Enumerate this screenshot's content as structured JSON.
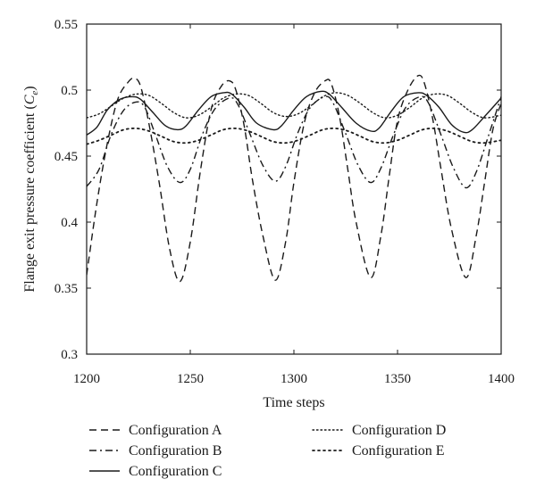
{
  "chart_data": {
    "type": "line",
    "title": "",
    "xlabel": "Time steps",
    "ylabel": {
      "main": "Flange exit pressure coefficient (",
      "symbol": "C",
      "subscript": "e",
      "close": ")"
    },
    "xlim": [
      1200,
      1400
    ],
    "ylim": [
      0.3,
      0.55
    ],
    "xticks": [
      "1200",
      "1250",
      "1300",
      "1350",
      "1400"
    ],
    "yticks": [
      "0.3",
      "0.35",
      "0.4",
      "0.45",
      "0.5",
      "0.55"
    ],
    "grid": false,
    "legend_position": "bottom",
    "series": [
      {
        "name": "Configuration A",
        "style": "dashed",
        "color": "#1a1a1a",
        "x": [
          1200,
          1205,
          1210,
          1215,
          1220,
          1223,
          1226,
          1230,
          1235,
          1240,
          1245,
          1250,
          1255,
          1260,
          1265,
          1269,
          1272,
          1276,
          1280,
          1285,
          1291,
          1296,
          1300,
          1305,
          1310,
          1315,
          1318,
          1322,
          1326,
          1330,
          1337,
          1342,
          1346,
          1350,
          1355,
          1360,
          1363,
          1367,
          1371,
          1376,
          1383,
          1388,
          1392,
          1396,
          1400
        ],
        "y": [
          0.36,
          0.415,
          0.46,
          0.493,
          0.506,
          0.509,
          0.503,
          0.475,
          0.43,
          0.38,
          0.355,
          0.385,
          0.44,
          0.485,
          0.503,
          0.507,
          0.5,
          0.473,
          0.432,
          0.39,
          0.356,
          0.385,
          0.43,
          0.475,
          0.498,
          0.507,
          0.505,
          0.48,
          0.44,
          0.4,
          0.358,
          0.39,
          0.435,
          0.477,
          0.5,
          0.511,
          0.505,
          0.478,
          0.44,
          0.395,
          0.358,
          0.39,
          0.43,
          0.47,
          0.49
        ]
      },
      {
        "name": "Configuration B",
        "style": "dashdot",
        "color": "#1a1a1a",
        "x": [
          1200,
          1206,
          1212,
          1218,
          1224,
          1228,
          1233,
          1239,
          1245,
          1250,
          1256,
          1262,
          1269,
          1273,
          1279,
          1285,
          1291,
          1296,
          1302,
          1308,
          1315,
          1319,
          1325,
          1331,
          1337,
          1342,
          1348,
          1354,
          1361,
          1365,
          1371,
          1377,
          1383,
          1388,
          1394,
          1400
        ],
        "y": [
          0.427,
          0.44,
          0.467,
          0.485,
          0.491,
          0.487,
          0.467,
          0.442,
          0.43,
          0.44,
          0.467,
          0.486,
          0.494,
          0.489,
          0.466,
          0.443,
          0.431,
          0.442,
          0.468,
          0.487,
          0.495,
          0.49,
          0.467,
          0.443,
          0.43,
          0.441,
          0.466,
          0.487,
          0.495,
          0.49,
          0.466,
          0.441,
          0.426,
          0.438,
          0.466,
          0.495
        ]
      },
      {
        "name": "Configuration C",
        "style": "solid",
        "color": "#1a1a1a",
        "x": [
          1200,
          1205,
          1210,
          1216,
          1222,
          1226,
          1232,
          1238,
          1244,
          1248,
          1254,
          1260,
          1266,
          1270,
          1276,
          1282,
          1290,
          1294,
          1300,
          1306,
          1313,
          1317,
          1323,
          1330,
          1337,
          1341,
          1347,
          1353,
          1360,
          1364,
          1370,
          1376,
          1382,
          1386,
          1392,
          1400
        ],
        "y": [
          0.466,
          0.472,
          0.485,
          0.493,
          0.495,
          0.493,
          0.483,
          0.473,
          0.47,
          0.473,
          0.485,
          0.495,
          0.498,
          0.497,
          0.487,
          0.475,
          0.47,
          0.473,
          0.485,
          0.495,
          0.499,
          0.497,
          0.487,
          0.475,
          0.469,
          0.471,
          0.484,
          0.495,
          0.498,
          0.496,
          0.487,
          0.474,
          0.468,
          0.47,
          0.48,
          0.494
        ]
      },
      {
        "name": "Configuration D",
        "style": "dotted-fine",
        "color": "#1a1a1a",
        "x": [
          1200,
          1206,
          1212,
          1218,
          1224,
          1230,
          1236,
          1242,
          1248,
          1254,
          1260,
          1266,
          1272,
          1278,
          1284,
          1290,
          1296,
          1302,
          1308,
          1314,
          1320,
          1326,
          1332,
          1338,
          1344,
          1350,
          1356,
          1362,
          1368,
          1374,
          1380,
          1386,
          1392,
          1400
        ],
        "y": [
          0.479,
          0.482,
          0.488,
          0.494,
          0.497,
          0.496,
          0.49,
          0.483,
          0.479,
          0.481,
          0.487,
          0.494,
          0.497,
          0.496,
          0.49,
          0.483,
          0.48,
          0.482,
          0.488,
          0.495,
          0.498,
          0.496,
          0.49,
          0.483,
          0.479,
          0.481,
          0.487,
          0.494,
          0.497,
          0.496,
          0.49,
          0.483,
          0.479,
          0.481
        ]
      },
      {
        "name": "Configuration E",
        "style": "dotted",
        "color": "#1a1a1a",
        "x": [
          1200,
          1206,
          1212,
          1218,
          1224,
          1230,
          1236,
          1242,
          1248,
          1254,
          1260,
          1266,
          1272,
          1278,
          1284,
          1290,
          1296,
          1302,
          1308,
          1314,
          1320,
          1326,
          1332,
          1338,
          1344,
          1350,
          1356,
          1362,
          1368,
          1374,
          1380,
          1386,
          1392,
          1400
        ],
        "y": [
          0.459,
          0.462,
          0.466,
          0.47,
          0.471,
          0.469,
          0.465,
          0.461,
          0.46,
          0.462,
          0.466,
          0.47,
          0.471,
          0.469,
          0.465,
          0.461,
          0.46,
          0.462,
          0.466,
          0.47,
          0.471,
          0.469,
          0.465,
          0.461,
          0.46,
          0.462,
          0.466,
          0.47,
          0.471,
          0.469,
          0.465,
          0.461,
          0.46,
          0.462
        ]
      }
    ]
  }
}
